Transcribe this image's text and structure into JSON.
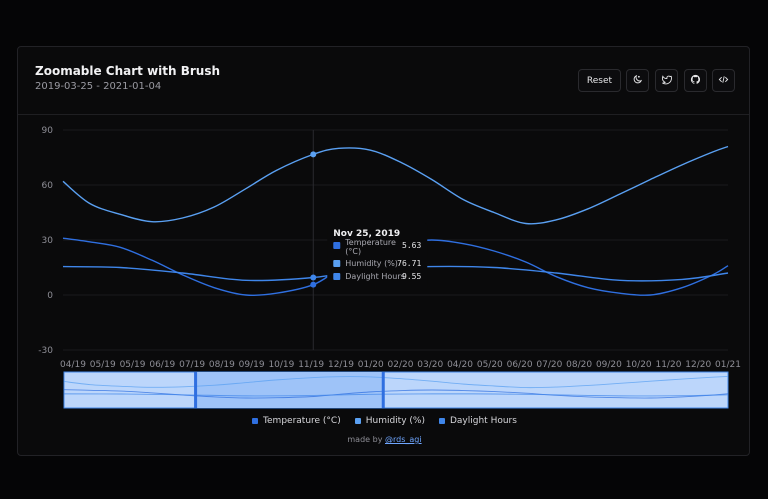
{
  "header": {
    "title": "Zoomable Chart with Brush",
    "date_range": "2019-03-25 - 2021-01-04",
    "reset_label": "Reset",
    "icons": [
      "theme-toggle-icon",
      "twitter-icon",
      "github-icon",
      "code-icon"
    ]
  },
  "chart_data": {
    "type": "line",
    "title": "Zoomable Chart with Brush",
    "x_start": "2019-03-25",
    "x_end": "2021-01-04",
    "ylim": [
      -30,
      90
    ],
    "y_ticks": [
      90,
      60,
      30,
      0,
      -30
    ],
    "x_ticks": [
      "04/19",
      "05/19",
      "05/19",
      "06/19",
      "07/19",
      "08/19",
      "09/19",
      "10/19",
      "11/19",
      "12/19",
      "01/20",
      "02/20",
      "03/20",
      "04/20",
      "05/20",
      "06/20",
      "07/20",
      "08/20",
      "09/20",
      "10/20",
      "11/20",
      "12/20",
      "01/21"
    ],
    "grid": true,
    "legend_position": "bottom",
    "series": [
      {
        "name": "Temperature (°C)",
        "color": "#2f6fe0",
        "points": [
          [
            "2019-03-25",
            31
          ],
          [
            "2019-04-20",
            29
          ],
          [
            "2019-05-20",
            26
          ],
          [
            "2019-06-20",
            19
          ],
          [
            "2019-07-20",
            11
          ],
          [
            "2019-08-20",
            4
          ],
          [
            "2019-09-20",
            0
          ],
          [
            "2019-10-20",
            1
          ],
          [
            "2019-11-25",
            5.63
          ],
          [
            "2019-12-20",
            14
          ],
          [
            "2020-01-20",
            23
          ],
          [
            "2020-02-20",
            28
          ],
          [
            "2020-03-20",
            30
          ],
          [
            "2020-04-20",
            28
          ],
          [
            "2020-05-20",
            24
          ],
          [
            "2020-06-20",
            18
          ],
          [
            "2020-07-20",
            10
          ],
          [
            "2020-08-20",
            4
          ],
          [
            "2020-09-20",
            1
          ],
          [
            "2020-10-20",
            0
          ],
          [
            "2020-11-20",
            4
          ],
          [
            "2020-12-20",
            11
          ],
          [
            "2021-01-04",
            16
          ]
        ]
      },
      {
        "name": "Humidity (%)",
        "color": "#5aa0f2",
        "points": [
          [
            "2019-03-25",
            62
          ],
          [
            "2019-04-20",
            50
          ],
          [
            "2019-05-20",
            44
          ],
          [
            "2019-06-20",
            40
          ],
          [
            "2019-07-20",
            42
          ],
          [
            "2019-08-20",
            48
          ],
          [
            "2019-09-20",
            58
          ],
          [
            "2019-10-20",
            68
          ],
          [
            "2019-11-25",
            76.71
          ],
          [
            "2019-12-20",
            80
          ],
          [
            "2020-01-20",
            79
          ],
          [
            "2020-02-20",
            72
          ],
          [
            "2020-03-20",
            63
          ],
          [
            "2020-04-20",
            52
          ],
          [
            "2020-05-20",
            45
          ],
          [
            "2020-06-20",
            39
          ],
          [
            "2020-07-20",
            41
          ],
          [
            "2020-08-20",
            47
          ],
          [
            "2020-09-20",
            55
          ],
          [
            "2020-10-20",
            63
          ],
          [
            "2020-11-20",
            71
          ],
          [
            "2020-12-20",
            78
          ],
          [
            "2021-01-04",
            81
          ]
        ]
      },
      {
        "name": "Daylight Hours",
        "color": "#3f86ea",
        "points": [
          [
            "2019-03-25",
            15.5
          ],
          [
            "2019-05-20",
            15
          ],
          [
            "2019-07-20",
            12
          ],
          [
            "2019-09-20",
            8
          ],
          [
            "2019-11-25",
            9.55
          ],
          [
            "2020-01-20",
            14
          ],
          [
            "2020-03-20",
            15.5
          ],
          [
            "2020-05-20",
            15
          ],
          [
            "2020-07-20",
            12
          ],
          [
            "2020-09-20",
            8
          ],
          [
            "2020-11-20",
            8.5
          ],
          [
            "2021-01-04",
            12
          ]
        ]
      }
    ]
  },
  "tooltip": {
    "date": "Nov 25, 2019",
    "rows": [
      {
        "label": "Temperature (°C)",
        "value": "5.63"
      },
      {
        "label": "Humidity (%)",
        "value": "76.71"
      },
      {
        "label": "Daylight Hours",
        "value": "9.55"
      }
    ]
  },
  "brush": {
    "start": "2019-08-01",
    "end": "2020-02-01"
  },
  "legend": [
    {
      "label": "Temperature (°C)",
      "color": "#2f6fe0"
    },
    {
      "label": "Humidity (%)",
      "color": "#5aa0f2"
    },
    {
      "label": "Daylight Hours",
      "color": "#3f86ea"
    }
  ],
  "credit": {
    "prefix": "made by",
    "handle": "@rds_agi"
  }
}
